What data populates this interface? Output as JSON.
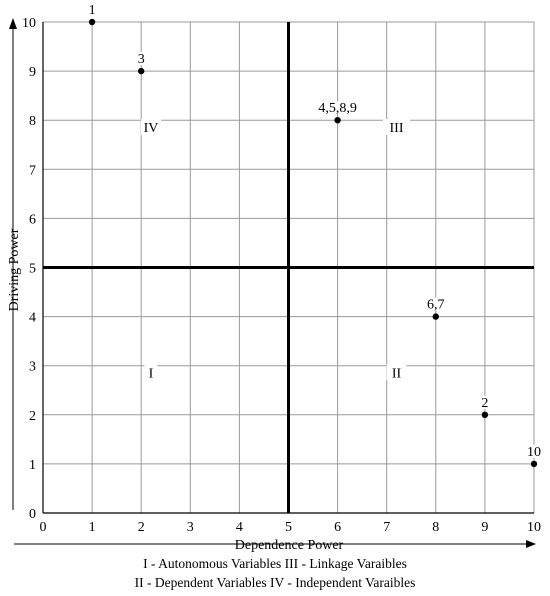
{
  "chart_data": {
    "type": "scatter",
    "xlabel": "Dependence Power",
    "ylabel": "Driving Power",
    "xlim": [
      0,
      10
    ],
    "ylim": [
      0,
      10
    ],
    "xticks": [
      "0",
      "1",
      "2",
      "3",
      "4",
      "5",
      "6",
      "7",
      "8",
      "9",
      "10"
    ],
    "yticks": [
      "0",
      "1",
      "2",
      "3",
      "4",
      "5",
      "6",
      "7",
      "8",
      "9",
      "10"
    ],
    "grid": true,
    "divider": {
      "x": 5,
      "y": 5
    },
    "points": [
      {
        "label": "1",
        "x": 1,
        "y": 10
      },
      {
        "label": "3",
        "x": 2,
        "y": 9
      },
      {
        "label": "4,5,8,9",
        "x": 6,
        "y": 8
      },
      {
        "label": "6,7",
        "x": 8,
        "y": 4
      },
      {
        "label": "2",
        "x": 9,
        "y": 2
      },
      {
        "label": "10",
        "x": 10,
        "y": 1
      }
    ],
    "quadrants": [
      {
        "label": "IV",
        "x": 2.2,
        "y": 7.8
      },
      {
        "label": "III",
        "x": 7.2,
        "y": 7.8
      },
      {
        "label": "I",
        "x": 2.2,
        "y": 2.8
      },
      {
        "label": "II",
        "x": 7.2,
        "y": 2.8
      }
    ]
  },
  "legend": {
    "line1": "I - Autonomous Variables III - Linkage Varaibles",
    "line2": "II - Dependent Variables IV - Independent Varaibles"
  }
}
